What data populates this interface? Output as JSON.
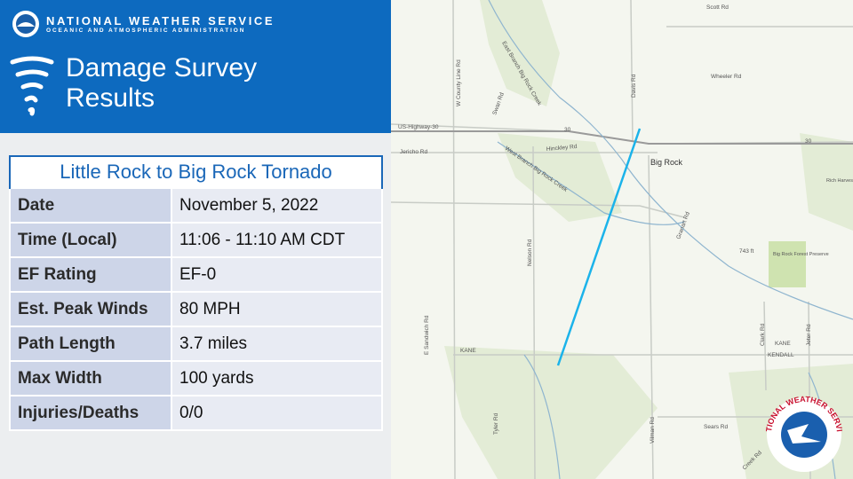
{
  "header": {
    "org": "NATIONAL WEATHER SERVICE",
    "suborg": "OCEANIC AND ATMOSPHERIC ADMINISTRATION",
    "title": "Damage Survey Results"
  },
  "table": {
    "title": "Little Rock to Big Rock Tornado",
    "rows": [
      [
        "Date",
        "November 5, 2022"
      ],
      [
        "Time (Local)",
        "11:06 - 11:10 AM CDT"
      ],
      [
        "EF Rating",
        "EF-0"
      ],
      [
        "Est. Peak Winds",
        "80 MPH"
      ],
      [
        "Path Length",
        "3.7 miles"
      ],
      [
        "Max Width",
        "100 yards"
      ],
      [
        "Injuries/Deaths",
        "0/0"
      ]
    ]
  },
  "map": {
    "labels": [
      "Scott Rd",
      "Wheeler Rd",
      "US-Highway-30",
      "30",
      "30",
      "Jericho Rd",
      "Hinckley Rd",
      "Big Rock",
      "Rich Harvest Farms",
      "743 ft",
      "Big Rock Forest Preserve",
      "KANE",
      "KANE",
      "KENDALL",
      "Sears Rd",
      "Tyler Rd",
      "Nelson Rd",
      "E Sandwich Rd",
      "W County Line Rd",
      "East Branch Big Rock Creek",
      "West Branch Big Rock Creek",
      "Davis Rd",
      "Swan Rd",
      "Clark Rd",
      "Jeter Rd",
      "Granart Rd",
      "Vilman Rd",
      "Creek Rd"
    ],
    "logo": "NATIONAL WEATHER SERVICE"
  }
}
